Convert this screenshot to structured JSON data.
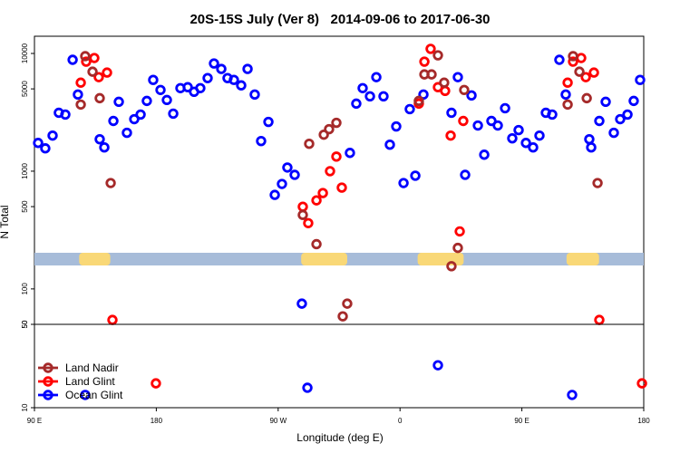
{
  "chart_data": [
    {
      "type": "scatter",
      "title": "20S-15S July (Ver 8)   2014-09-06 to 2017-06-30",
      "y_label": "N Total",
      "log_y": true,
      "xlim": [
        90,
        540
      ],
      "ylim": [
        50,
        14000
      ],
      "yticks": [
        50,
        100,
        500,
        1000,
        5000,
        10000
      ],
      "surface": {
        "land_color": "#f9d877",
        "ocean_color": "#a7bcd9",
        "land_ranges": [
          [
            123,
            146
          ],
          [
            287,
            321
          ],
          [
            373,
            407
          ],
          [
            483,
            507
          ]
        ]
      },
      "series": [
        {
          "color": "#a52a2a",
          "x": [
            124.2,
            127.5,
            132.9,
            138.2,
            146.3,
            288.2,
            292.9,
            298.3,
            303.7,
            307.6,
            313,
            317.7,
            321,
            373.9,
            378,
            383.3,
            388,
            392.6,
            398,
            402.7,
            407.4,
            483.8,
            487.8,
            492.5,
            497.9,
            505.9
          ],
          "values": [
            3681,
            9484,
            6998,
            4169,
            793,
            425,
            1709,
            240,
            2042,
            2274,
            2576,
            58.5,
            75,
            3953,
            6637,
            6637,
            9640,
            5649,
            156,
            223,
            4897,
            3681,
            9484,
            6998,
            4169,
            793
          ]
        },
        {
          "color": "#ff0000",
          "x": [
            124.2,
            128.2,
            134.2,
            137.5,
            143.6,
            147.6,
            288.2,
            292.2,
            298.3,
            303,
            308.3,
            313,
            317,
            373.9,
            378,
            382.6,
            388,
            393.3,
            397.4,
            404.1,
            406.7,
            483.8,
            487.8,
            493.8,
            497.2,
            503.2,
            507.2
          ],
          "values": [
            5649,
            8515,
            9147,
            6290,
            6878,
            54.5,
            499,
            362,
            565,
            652,
            1000,
            1330,
            725,
            3749,
            8515,
            10940,
            5170,
            4810,
            2006,
            308,
            2670,
            5649,
            8515,
            9147,
            6290,
            6878,
            54.5
          ]
        },
        {
          "color": "#0000ff",
          "x": [
            92.7,
            98,
            103.4,
            108,
            112.8,
            118.2,
            122.1,
            138.2,
            141.6,
            148.3,
            152.3,
            158.3,
            163.7,
            168.4,
            173,
            177.7,
            183.1,
            187.8,
            192.5,
            197.8,
            203.2,
            207.9,
            212.5,
            217.9,
            222.6,
            228,
            232.6,
            237.3,
            242.7,
            247.4,
            252.7,
            257.4,
            262.8,
            267.5,
            272.8,
            276.8,
            282.2,
            287.5,
            323,
            327.7,
            332.4,
            337.8,
            342.5,
            347.8,
            352.5,
            357.2,
            362.6,
            367.2,
            371.3,
            377.3,
            398,
            402.7,
            408.1,
            412.8,
            417.5,
            422.2,
            427.5,
            432.2,
            437.6,
            442.9,
            447.6,
            453,
            458.3,
            463,
            467.7,
            472.4,
            477.7,
            482.4,
            499.8,
            501.2,
            507.2,
            511.9,
            517.9,
            522.6,
            528,
            532.6,
            537.3
          ],
          "values": [
            1738,
            1563,
            2006,
            3133,
            3027,
            8830,
            4478,
            1868,
            1592,
            2670,
            3884,
            2118,
            2766,
            3027,
            3953,
            5960,
            4897,
            4024,
            3080,
            5074,
            5170,
            4724,
            5074,
            6176,
            8220,
            7386,
            6176,
            5960,
            5356,
            7386,
            4478,
            1803,
            2622,
            629,
            779,
            1074,
            931,
            75,
            1430,
            3749,
            5074,
            4324,
            6290,
            4324,
            1679,
            2399,
            793,
            3365,
            915,
            4478,
            3133,
            6290,
            931,
            4400,
            2443,
            1380,
            2670,
            2443,
            3427,
            1901,
            2234,
            1738,
            1592,
            2006,
            3133,
            3027,
            8830,
            4478,
            1868,
            1592,
            2670,
            3884,
            2118,
            2766,
            3027,
            3953,
            5960
          ]
        }
      ]
    },
    {
      "type": "scatter",
      "x_label": "Longitude (deg E)",
      "log_y": true,
      "legend": "lower left",
      "xlim": [
        90,
        540
      ],
      "ylim": [
        10,
        50
      ],
      "yticks": [
        10,
        50
      ],
      "xticks": [
        {
          "value": 90,
          "label": "90 E"
        },
        180,
        {
          "value": 270,
          "label": "90 W"
        },
        {
          "value": 360,
          "label": "0"
        },
        {
          "value": 450,
          "label": "90 E"
        },
        {
          "value": 540,
          "label": "180"
        }
      ],
      "series": [
        {
          "name": "Land Nadir",
          "color": "#a52a2a",
          "x": [],
          "values": []
        },
        {
          "name": "Land Glint",
          "color": "#ff0000",
          "x": [
            179.7,
            538.7
          ],
          "values": [
            16,
            16
          ]
        },
        {
          "name": "Ocean Glint",
          "color": "#0000ff",
          "x": [
            127.5,
            291.6,
            388,
            487.1
          ],
          "values": [
            12.8,
            14.7,
            22.7,
            12.8
          ]
        }
      ]
    }
  ]
}
